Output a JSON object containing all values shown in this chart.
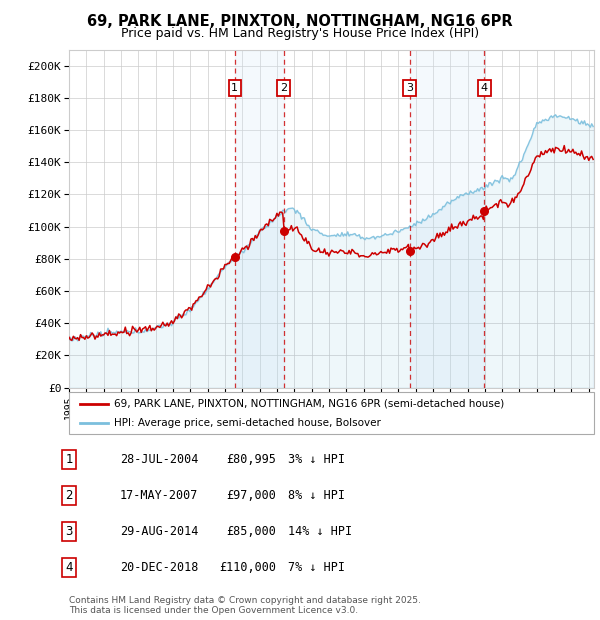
{
  "title": "69, PARK LANE, PINXTON, NOTTINGHAM, NG16 6PR",
  "subtitle": "Price paid vs. HM Land Registry's House Price Index (HPI)",
  "ylabel_ticks": [
    "£0",
    "£20K",
    "£40K",
    "£60K",
    "£80K",
    "£100K",
    "£120K",
    "£140K",
    "£160K",
    "£180K",
    "£200K"
  ],
  "ytick_values": [
    0,
    20000,
    40000,
    60000,
    80000,
    100000,
    120000,
    140000,
    160000,
    180000,
    200000
  ],
  "ylim": [
    0,
    210000
  ],
  "legend_property_label": "69, PARK LANE, PINXTON, NOTTINGHAM, NG16 6PR (semi-detached house)",
  "legend_hpi_label": "HPI: Average price, semi-detached house, Bolsover",
  "property_color": "#cc0000",
  "hpi_color": "#7bbfdd",
  "hpi_fill_color": "#d6eaf8",
  "shade_between_color": "#ddeeff",
  "sale_dates_decimal": [
    2004.57,
    2007.38,
    2014.66,
    2018.97
  ],
  "sale_prices": [
    80995,
    97000,
    85000,
    110000
  ],
  "sale_labels": [
    "1",
    "2",
    "3",
    "4"
  ],
  "table_rows": [
    [
      "1",
      "28-JUL-2004",
      "£80,995",
      "3% ↓ HPI"
    ],
    [
      "2",
      "17-MAY-2007",
      "£97,000",
      "8% ↓ HPI"
    ],
    [
      "3",
      "29-AUG-2014",
      "£85,000",
      "14% ↓ HPI"
    ],
    [
      "4",
      "20-DEC-2018",
      "£110,000",
      "7% ↓ HPI"
    ]
  ],
  "footnote": "Contains HM Land Registry data © Crown copyright and database right 2025.\nThis data is licensed under the Open Government Licence v3.0.",
  "background_color": "#ffffff",
  "grid_color": "#cccccc"
}
